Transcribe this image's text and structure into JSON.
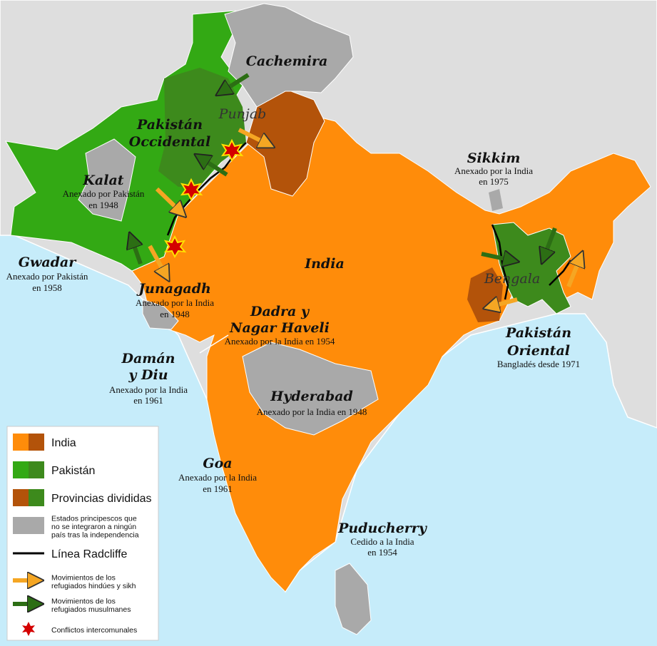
{
  "map": {
    "labels": [
      {
        "title": [
          "Cachemira"
        ]
      },
      {
        "title": [
          "Punjab"
        ]
      },
      {
        "title": [
          "Pakistán",
          "Occidental"
        ]
      },
      {
        "title": [
          "Kalat"
        ],
        "note": [
          "Anexado por Pakistán",
          "en 1948"
        ]
      },
      {
        "title": [
          "Gwadar"
        ],
        "note": [
          "Anexado por Pakistán",
          "en 1958"
        ]
      },
      {
        "title": [
          "India"
        ]
      },
      {
        "title": [
          "Junagadh"
        ],
        "note": [
          "Anexado por la India",
          "en 1948"
        ]
      },
      {
        "title": [
          "Dadra y",
          "Nagar Haveli"
        ],
        "note": [
          "Anexado por la India en 1954"
        ]
      },
      {
        "title": [
          "Damán",
          "y Diu"
        ],
        "note": [
          "Anexado por la India",
          "en 1961"
        ]
      },
      {
        "title": [
          "Hyderabad"
        ],
        "note": [
          "Anexado por la India en 1948"
        ]
      },
      {
        "title": [
          "Goa"
        ],
        "note": [
          "Anexado por la India",
          "en 1961"
        ]
      },
      {
        "title": [
          "Puducherry"
        ],
        "note": [
          "Cedido a la India",
          "en 1954"
        ]
      },
      {
        "title": [
          "Sikkim"
        ],
        "note": [
          "Anexado por la India",
          "en 1975"
        ]
      },
      {
        "title": [
          "Bengala"
        ]
      },
      {
        "title": [
          "Pakistán",
          "Oriental"
        ],
        "note": [
          "Bangladés desde 1971"
        ]
      }
    ],
    "legend": [
      [
        "India"
      ],
      [
        "Pakistán"
      ],
      [
        "Provincias divididas"
      ],
      [
        "Estados principescos que",
        "no se integraron a ningún",
        "país tras la independencia"
      ],
      [
        "Línea Radcliffe"
      ],
      [
        "Movimientos de los",
        "refugiados hindúes y sikh"
      ],
      [
        "Movimientos de los",
        "refugiados musulmanes"
      ],
      [
        "Conflictos intercomunales"
      ]
    ]
  }
}
